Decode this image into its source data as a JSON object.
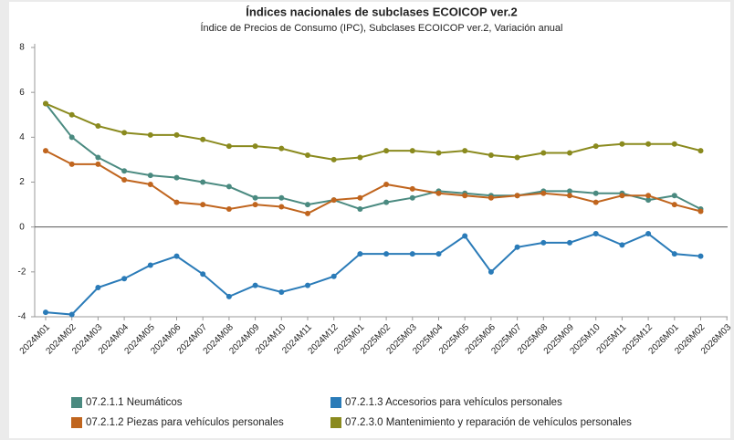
{
  "chart_data": {
    "type": "line",
    "title": "Índices nacionales de subclases ECOICOP ver.2",
    "subtitle": "Índice de Precios de Consumo (IPC), Subclases ECOICOP ver.2, Variación anual",
    "categories": [
      "2024M01",
      "2024M02",
      "2024M03",
      "2024M04",
      "2024M05",
      "2024M06",
      "2024M07",
      "2024M08",
      "2024M09",
      "2024M10",
      "2024M11",
      "2024M12",
      "2025M01",
      "2025M02",
      "2025M03",
      "2025M04",
      "2025M05",
      "2025M06",
      "2025M07",
      "2025M08",
      "2025M09",
      "2025M10",
      "2025M11",
      "2025M12",
      "2026M01",
      "2026M02",
      "2026M03"
    ],
    "series": [
      {
        "name": "07.2.1.1 Neumáticos",
        "color": "#4a8a80",
        "values": [
          5.5,
          4.0,
          3.1,
          2.5,
          2.3,
          2.2,
          2.0,
          1.8,
          1.3,
          1.3,
          1.0,
          1.2,
          0.8,
          1.1,
          1.3,
          1.6,
          1.5,
          1.4,
          1.4,
          1.6,
          1.6,
          1.5,
          1.5,
          1.2,
          1.4,
          0.8,
          null
        ]
      },
      {
        "name": "07.2.1.3 Accesorios para vehículos personales",
        "color": "#2a7bb8",
        "values": [
          -3.8,
          -3.9,
          -2.7,
          -2.3,
          -1.7,
          -1.3,
          -2.1,
          -3.1,
          -2.6,
          -2.9,
          -2.6,
          -2.2,
          -1.2,
          -1.2,
          -1.2,
          -1.2,
          -0.4,
          -2.0,
          -0.9,
          -0.7,
          -0.7,
          -0.3,
          -0.8,
          -0.3,
          -1.2,
          -1.3,
          null
        ]
      },
      {
        "name": "07.2.1.2 Piezas para vehículos personales",
        "color": "#c0651e",
        "values": [
          3.4,
          2.8,
          2.8,
          2.1,
          1.9,
          1.1,
          1.0,
          0.8,
          1.0,
          0.9,
          0.6,
          1.2,
          1.3,
          1.9,
          1.7,
          1.5,
          1.4,
          1.3,
          1.4,
          1.5,
          1.4,
          1.1,
          1.4,
          1.4,
          1.0,
          0.7,
          null
        ]
      },
      {
        "name": "07.2.3.0 Mantenimiento y reparación de vehículos personales",
        "color": "#8a8a1e",
        "values": [
          5.5,
          5.0,
          4.5,
          4.2,
          4.1,
          4.1,
          3.9,
          3.6,
          3.6,
          3.5,
          3.2,
          3.0,
          3.1,
          3.4,
          3.4,
          3.3,
          3.4,
          3.2,
          3.1,
          3.3,
          3.3,
          3.6,
          3.7,
          3.7,
          3.7,
          3.4,
          null
        ]
      }
    ],
    "ylim": [
      -4,
      8
    ],
    "yticks": [
      -4,
      -2,
      0,
      2,
      4,
      6,
      8
    ]
  }
}
